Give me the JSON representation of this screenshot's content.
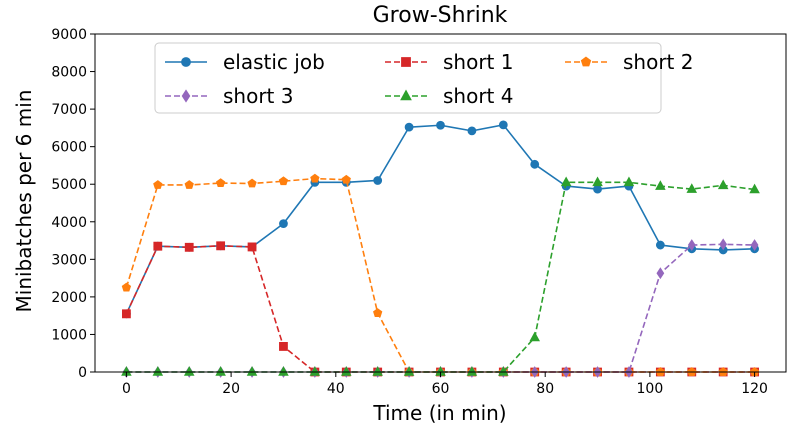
{
  "chart_data": {
    "type": "line",
    "title": "Grow-Shrink",
    "xlabel": "Time (in min)",
    "ylabel": "Minibatches per 6 min",
    "xlim": [
      -6,
      126
    ],
    "ylim": [
      0,
      9000
    ],
    "xticks": [
      0,
      20,
      40,
      60,
      80,
      100,
      120
    ],
    "yticks": [
      0,
      1000,
      2000,
      3000,
      4000,
      5000,
      6000,
      7000,
      8000,
      9000
    ],
    "grid": false,
    "legend": {
      "placement": "top-center",
      "columns": 3
    },
    "x": [
      0,
      6,
      12,
      18,
      24,
      30,
      36,
      42,
      48,
      54,
      60,
      66,
      72,
      78,
      84,
      90,
      96,
      102,
      108,
      114,
      120
    ],
    "series": [
      {
        "name": "elastic job",
        "color": "#1f77b4",
        "line_style": "solid",
        "marker": "circle",
        "values": [
          1550,
          3350,
          3320,
          3360,
          3330,
          3950,
          5050,
          5050,
          5100,
          6520,
          6570,
          6420,
          6580,
          5530,
          4950,
          4870,
          4950,
          3380,
          3280,
          3250,
          3280
        ]
      },
      {
        "name": "short 1",
        "color": "#d62728",
        "line_style": "dashed",
        "marker": "square",
        "values": [
          1550,
          3350,
          3320,
          3360,
          3330,
          680,
          0,
          0,
          0,
          0,
          0,
          0,
          0,
          0,
          0,
          0,
          0,
          0,
          0,
          0,
          0
        ]
      },
      {
        "name": "short 2",
        "color": "#ff7f0e",
        "line_style": "dashed",
        "marker": "pentagon",
        "values": [
          2250,
          4980,
          4980,
          5030,
          5020,
          5080,
          5150,
          5120,
          1570,
          0,
          0,
          0,
          0,
          0,
          0,
          0,
          0,
          0,
          0,
          0,
          0
        ]
      },
      {
        "name": "short 3",
        "color": "#9467bd",
        "line_style": "dashed",
        "marker": "diamond",
        "values": [
          0,
          0,
          0,
          0,
          0,
          0,
          0,
          0,
          0,
          0,
          0,
          0,
          0,
          0,
          0,
          0,
          0,
          2630,
          3380,
          3400,
          3380
        ]
      },
      {
        "name": "short 4",
        "color": "#2ca02c",
        "line_style": "dashed",
        "marker": "triangle",
        "values": [
          0,
          0,
          0,
          0,
          0,
          0,
          0,
          0,
          0,
          0,
          0,
          0,
          0,
          920,
          5050,
          5050,
          5050,
          4950,
          4870,
          4970,
          4860
        ]
      }
    ]
  }
}
